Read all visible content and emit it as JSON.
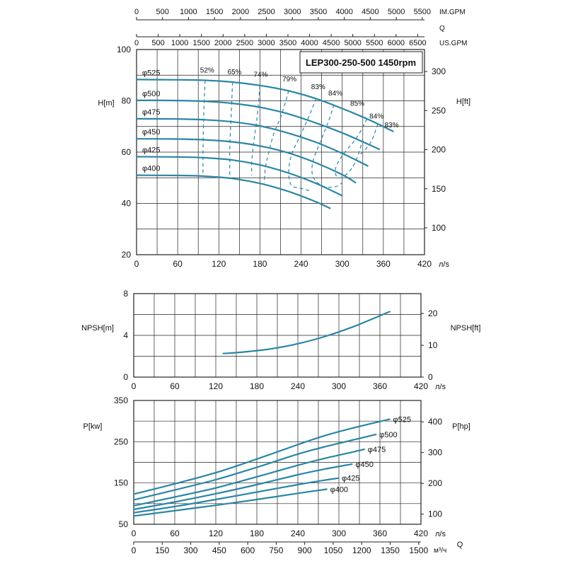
{
  "colors": {
    "curve": "#2a86a6",
    "grid": "#222222",
    "text": "#111111"
  },
  "chart_data": [
    {
      "id": "head",
      "type": "line",
      "title": "LEP300-250-500 1450rpm",
      "xlabel": "",
      "x_unit": "л/s",
      "ylabel": "H[m]",
      "ylabel_right": "H[ft]",
      "xlim": [
        0,
        420
      ],
      "ylim": [
        20,
        100
      ],
      "x_ticks": [
        0,
        60,
        120,
        180,
        240,
        300,
        360,
        420
      ],
      "y_ticks": [
        20,
        40,
        60,
        80,
        100
      ],
      "y2_ticks": [
        100,
        150,
        200,
        250,
        300
      ],
      "grid": true,
      "top_axes": [
        {
          "label": "IM.GPM",
          "ticks": [
            0,
            500,
            1000,
            1500,
            2000,
            2500,
            3000,
            3500,
            4000,
            4500,
            5000,
            5500
          ]
        },
        {
          "label": "US.GPM",
          "ticks": [
            0,
            500,
            1000,
            1500,
            2000,
            2500,
            3000,
            3500,
            4000,
            4500,
            5000,
            5500,
            6000,
            6500
          ]
        }
      ],
      "top_axis_q_label": "Q",
      "series": [
        {
          "name": "φ525",
          "x": [
            0,
            60,
            100,
            140,
            180,
            220,
            260,
            300,
            340,
            375
          ],
          "y": [
            88.3,
            88.2,
            88,
            87.3,
            86,
            84,
            81,
            77,
            72.5,
            68
          ]
        },
        {
          "name": "φ500",
          "x": [
            0,
            60,
            100,
            140,
            180,
            220,
            260,
            300,
            330,
            355
          ],
          "y": [
            80.2,
            80.1,
            79.8,
            79,
            77.5,
            75,
            71.5,
            67.5,
            64,
            61
          ]
        },
        {
          "name": "φ475",
          "x": [
            0,
            60,
            100,
            140,
            180,
            220,
            260,
            300,
            338
          ],
          "y": [
            73,
            72.9,
            72.6,
            71.8,
            70.2,
            67.5,
            64,
            59.5,
            54.5
          ]
        },
        {
          "name": "φ450",
          "x": [
            0,
            60,
            100,
            140,
            180,
            220,
            260,
            300,
            320
          ],
          "y": [
            65.2,
            65.1,
            64.8,
            64,
            62.4,
            59.8,
            56,
            51.2,
            48
          ]
        },
        {
          "name": "φ425",
          "x": [
            0,
            60,
            100,
            140,
            180,
            220,
            260,
            300
          ],
          "y": [
            58.2,
            58.1,
            57.8,
            56.9,
            55,
            52,
            48,
            43
          ]
        },
        {
          "name": "φ400",
          "x": [
            0,
            60,
            100,
            140,
            180,
            220,
            260,
            283
          ],
          "y": [
            51,
            50.9,
            50.6,
            49.7,
            47.8,
            44.8,
            40.8,
            38
          ]
        }
      ],
      "efficiency_labels": [
        {
          "label": "52%",
          "x": 103,
          "y": 90
        },
        {
          "label": "65%",
          "x": 143,
          "y": 89.2
        },
        {
          "label": "74%",
          "x": 181,
          "y": 88.3
        },
        {
          "label": "79%",
          "x": 223,
          "y": 86.5
        },
        {
          "label": "83%",
          "x": 265,
          "y": 83.5
        },
        {
          "label": "84%",
          "x": 290,
          "y": 81
        },
        {
          "label": "85%",
          "x": 322,
          "y": 77
        },
        {
          "label": "84%",
          "x": 350,
          "y": 72
        },
        {
          "label": "83%",
          "x": 372,
          "y": 68.5
        }
      ],
      "efficiency_contours": [
        {
          "x": [
            100,
            98,
            97,
            97
          ],
          "y": [
            88,
            75,
            62,
            51
          ]
        },
        {
          "x": [
            140,
            138,
            136,
            136
          ],
          "y": [
            87.3,
            74,
            62,
            51
          ]
        },
        {
          "x": [
            180,
            176,
            171,
            168,
            168
          ],
          "y": [
            86,
            74,
            64,
            56,
            51
          ]
        },
        {
          "x": [
            222,
            212,
            200,
            193,
            188,
            186
          ],
          "y": [
            84,
            75,
            67,
            60,
            54,
            48
          ]
        },
        {
          "x": [
            262,
            250,
            238,
            226,
            222,
            226,
            238,
            252
          ],
          "y": [
            81,
            73,
            66,
            59,
            52,
            47,
            46,
            45
          ]
        },
        {
          "x": [
            288,
            280,
            268,
            258,
            256,
            262,
            275,
            290,
            300
          ],
          "y": [
            78.5,
            72,
            64,
            57,
            52,
            48.5,
            46.5,
            46.5,
            48
          ]
        },
        {
          "x": [
            336,
            322,
            304,
            292,
            290,
            298,
            312,
            322,
            330
          ],
          "y": [
            73,
            66,
            60,
            55,
            51.5,
            50,
            53,
            58,
            65
          ]
        },
        {
          "x": [
            352,
            342,
            330,
            325
          ],
          "y": [
            71,
            64,
            60,
            59
          ]
        }
      ]
    },
    {
      "id": "npsh",
      "type": "line",
      "xlabel": "",
      "x_unit": "л/s",
      "ylabel": "NPSH[m]",
      "ylabel_right": "NPSH[ft]",
      "xlim": [
        0,
        420
      ],
      "ylim": [
        0,
        8
      ],
      "x_ticks": [
        0,
        60,
        120,
        180,
        240,
        300,
        360,
        420
      ],
      "y_ticks": [
        0,
        4,
        8
      ],
      "y2_ticks": [
        0,
        10,
        20
      ],
      "grid": true,
      "series": [
        {
          "name": "",
          "x": [
            130,
            160,
            200,
            240,
            280,
            320,
            350,
            375
          ],
          "y": [
            2.25,
            2.4,
            2.7,
            3.2,
            3.9,
            4.8,
            5.6,
            6.3
          ]
        }
      ]
    },
    {
      "id": "power",
      "type": "line",
      "xlabel": "Q",
      "x_unit": "л/s",
      "x2_unit": "м³/ч",
      "ylabel": "P[kw]",
      "ylabel_right": "P[hp]",
      "xlim": [
        0,
        420
      ],
      "ylim": [
        50,
        350
      ],
      "x_ticks": [
        0,
        60,
        120,
        180,
        240,
        300,
        360,
        420
      ],
      "y_ticks": [
        50,
        150,
        250,
        350
      ],
      "y2_ticks": [
        100,
        200,
        300,
        400
      ],
      "x2_ticks": [
        0,
        150,
        300,
        450,
        600,
        750,
        900,
        1050,
        1200,
        1350,
        1500
      ],
      "grid": true,
      "series": [
        {
          "name": "φ525",
          "x": [
            0,
            60,
            120,
            180,
            240,
            280,
            320,
            375
          ],
          "y": [
            123,
            148,
            175,
            208,
            243,
            265,
            283,
            305
          ]
        },
        {
          "name": "φ500",
          "x": [
            0,
            60,
            120,
            180,
            240,
            280,
            320,
            355
          ],
          "y": [
            109,
            133,
            158,
            188,
            220,
            238,
            254,
            268
          ]
        },
        {
          "name": "φ475",
          "x": [
            0,
            60,
            120,
            180,
            240,
            280,
            320,
            338
          ],
          "y": [
            95,
            116,
            138,
            165,
            193,
            210,
            225,
            232
          ]
        },
        {
          "name": "φ450",
          "x": [
            0,
            60,
            120,
            180,
            240,
            280,
            320
          ],
          "y": [
            86,
            104,
            124,
            146,
            170,
            184,
            196
          ]
        },
        {
          "name": "φ425",
          "x": [
            0,
            60,
            120,
            180,
            240,
            280,
            300
          ],
          "y": [
            78,
            93,
            110,
            128,
            146,
            157,
            162
          ]
        },
        {
          "name": "φ400",
          "x": [
            0,
            60,
            120,
            180,
            240,
            283
          ],
          "y": [
            70,
            83,
            96,
            110,
            125,
            135
          ]
        }
      ]
    }
  ]
}
